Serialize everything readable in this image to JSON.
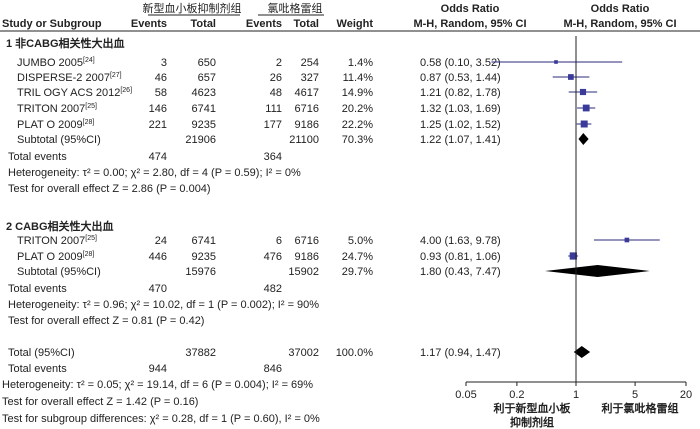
{
  "header": {
    "group1": "新型血小板抑制剂组",
    "group2": "氯吡格雷组",
    "or_title": "Odds Ratio",
    "or_title2": "Odds Ratio",
    "study_col": "Study or Subgroup",
    "events1": "Events",
    "total1": "Total",
    "events2": "Events",
    "total2": "Total",
    "weight": "Weight",
    "or_method": "M-H, Random, 95% CI",
    "or_method2": "M-H, Random, 95% CI"
  },
  "chart_data": {
    "type": "forest",
    "x_scale": "log",
    "xlim": [
      0.05,
      20
    ],
    "x_ticks": [
      {
        "value": 0.05,
        "label": "0.05"
      },
      {
        "value": 0.2,
        "label": "0.2"
      },
      {
        "value": 1,
        "label": "1"
      },
      {
        "value": 5,
        "label": "5"
      },
      {
        "value": 20,
        "label": "20"
      }
    ],
    "x_left_label_1": "利于新型血小板",
    "x_left_label_2": "抑制剂组",
    "x_right_label": "利于氯吡格雷组",
    "subgroups": [
      {
        "title": "1 非CABG相关性大出血",
        "studies": [
          {
            "name": "JUMBO 2005",
            "ref": "[24]",
            "e1": "3",
            "t1": "650",
            "e2": "2",
            "t2": "254",
            "weight": "1.4%",
            "or_text": "0.58 (0.10, 3.52)",
            "or": 0.58,
            "lo": 0.1,
            "hi": 3.52
          },
          {
            "name": "DISPERSE-2 2007",
            "ref": "[27]",
            "e1": "46",
            "t1": "657",
            "e2": "26",
            "t2": "327",
            "weight": "11.4%",
            "or_text": "0.87 (0.53, 1.44)",
            "or": 0.87,
            "lo": 0.53,
            "hi": 1.44
          },
          {
            "name": "TRIL OGY ACS 2012",
            "ref": "[26]",
            "e1": "58",
            "t1": "4623",
            "e2": "48",
            "t2": "4617",
            "weight": "14.9%",
            "or_text": "1.21 (0.82, 1.78)",
            "or": 1.21,
            "lo": 0.82,
            "hi": 1.78
          },
          {
            "name": "TRITON 2007",
            "ref": "[25]",
            "e1": "146",
            "t1": "6741",
            "e2": "111",
            "t2": "6716",
            "weight": "20.2%",
            "or_text": "1.32 (1.03, 1.69)",
            "or": 1.32,
            "lo": 1.03,
            "hi": 1.69
          },
          {
            "name": "PLAT O 2009",
            "ref": "[28]",
            "e1": "221",
            "t1": "9235",
            "e2": "177",
            "t2": "9186",
            "weight": "22.2%",
            "or_text": "1.25 (1.02, 1.52)",
            "or": 1.25,
            "lo": 1.02,
            "hi": 1.52
          }
        ],
        "subtotal": {
          "label": "Subtotal (95%CI)",
          "t1": "21906",
          "t2": "21100",
          "weight": "70.3%",
          "or_text": "1.22 (1.07, 1.41)",
          "or": 1.22,
          "lo": 1.07,
          "hi": 1.41
        },
        "total_events": {
          "label": "Total events",
          "e1": "474",
          "e2": "364"
        },
        "heterogeneity": "Heterogeneity: τ² = 0.00; χ² = 2.80, df = 4 (P = 0.59); I² = 0%",
        "overall": "Test for overall effect Z = 2.86 (P = 0.004)"
      },
      {
        "title": "2 CABG相关性大出血",
        "studies": [
          {
            "name": "TRITON 2007",
            "ref": "[25]",
            "e1": "24",
            "t1": "6741",
            "e2": "6",
            "t2": "6716",
            "weight": "5.0%",
            "or_text": "4.00 (1.63, 9.78)",
            "or": 4.0,
            "lo": 1.63,
            "hi": 9.78
          },
          {
            "name": "PLAT O 2009",
            "ref": "[28]",
            "e1": "446",
            "t1": "9235",
            "e2": "476",
            "t2": "9186",
            "weight": "24.7%",
            "or_text": "0.93 (0.81, 1.06)",
            "or": 0.93,
            "lo": 0.81,
            "hi": 1.06
          }
        ],
        "subtotal": {
          "label": "Subtotal (95%CI)",
          "t1": "15976",
          "t2": "15902",
          "weight": "29.7%",
          "or_text": "1.80 (0.43, 7.47)",
          "or": 1.8,
          "lo": 0.43,
          "hi": 7.47
        },
        "total_events": {
          "label": "Total events",
          "e1": "470",
          "e2": "482"
        },
        "heterogeneity": "Heterogeneity: τ² = 0.96; χ² = 10.02, df = 1 (P = 0.002); I² = 90%",
        "overall": "Test for overall effect Z = 0.81 (P = 0.42)"
      }
    ],
    "total": {
      "label": "Total (95%CI)",
      "t1": "37882",
      "t2": "37002",
      "weight": "100.0%",
      "or_text": "1.17 (0.94, 1.47)",
      "or": 1.17,
      "lo": 0.94,
      "hi": 1.47
    },
    "total_events": {
      "label": "Total events",
      "e1": "944",
      "e2": "846"
    },
    "heterogeneity": "Heterogeneity: τ² = 0.05; χ² = 19.14, df = 6 (P = 0.004); I² = 69%",
    "overall": "Test for overall effect Z = 1.42 (P = 0.16)",
    "subgroup_diff": "Test for subgroup differences: χ² = 0.28, df = 1 (P = 0.60), I² = 0%"
  }
}
